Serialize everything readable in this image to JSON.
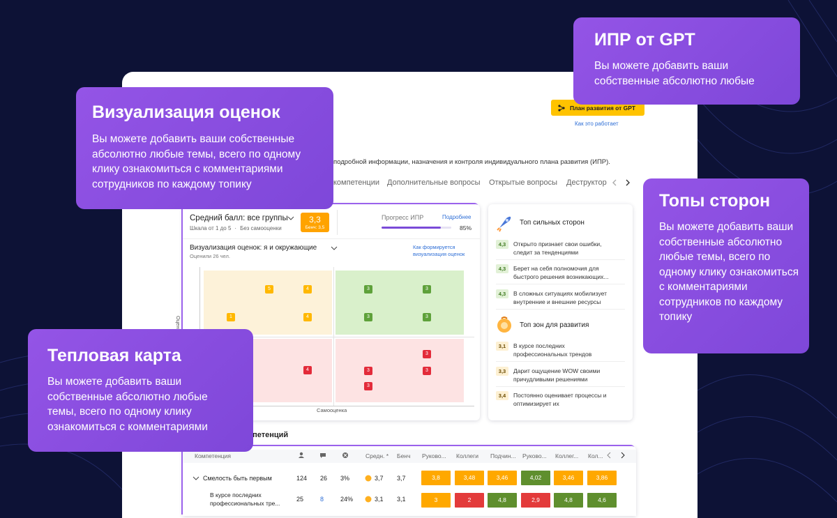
{
  "callouts": [
    {
      "title": "ИПР от GPT",
      "text": "Вы можете добавить ваши собственные абсолютно любые"
    },
    {
      "title": "Визуализация оценок",
      "text": "Вы можете добавить ваши собственные абсолютно любые темы, всего по одному клику ознакомиться с комментариями сотрудников по каждому топику"
    },
    {
      "title": "Топы сторон",
      "text": "Вы можете добавить ваши собственные абсолютно любые темы, всего по одному клику ознакомиться с комментариями сотрудников по каждому топику"
    },
    {
      "title": "Тепловая карта",
      "text": "Вы можете добавить ваши собственные абсолютно любые темы, всего по одному клику ознакомиться с комментариями"
    }
  ],
  "gpt_button": "План развития от GPT",
  "how_link": "Как это работает",
  "description": "подробной информации, назначения и контроля индивидуального плана развития (ИПР).",
  "tabs": [
    "компетенции",
    "Дополнительные вопросы",
    "Открытые вопросы",
    "Деструктор"
  ],
  "score_card": {
    "title": "Средний балл: все группы",
    "scale": "Шкала от 1 до 5",
    "self": "Без самооценки",
    "score": "3,3",
    "bench": "Бенч: 3,5",
    "progress_title": "Прогресс ИПР",
    "more": "Подробнее",
    "progress": {
      "value": 85,
      "label": "85%"
    }
  },
  "visualization": {
    "title": "Визуализация оценок: я и окружающие",
    "raters": "Оценили 26 чел.",
    "link": "Как формируется визуализация оценок",
    "y_axis": "Оценка",
    "x_axis": "Самооценка",
    "quadrants": [
      {
        "markers": [
          "5",
          "4",
          "1",
          "4"
        ]
      },
      {
        "markers": [
          "3",
          "3",
          "3",
          "3"
        ]
      },
      {
        "markers": [
          "4"
        ]
      },
      {
        "markers": [
          "3",
          "3",
          "3",
          "3"
        ]
      }
    ]
  },
  "strengths": {
    "title": "Топ сильных сторон",
    "items": [
      {
        "score": "4,3",
        "text": "Открыто признает свои ошибки, следит за тенденциями"
      },
      {
        "score": "4,3",
        "text": "Берет на себя полномочия для быстрого решения возникающих..."
      },
      {
        "score": "4,3",
        "text": "В сложных ситуациях мобилизует внутренние и внешние ресурсы"
      }
    ]
  },
  "growth": {
    "title": "Топ зон для развития",
    "items": [
      {
        "score": "3,1",
        "text": "В курсе последних профессиональных трендов"
      },
      {
        "score": "3,3",
        "text": "Дарит ощущение WOW своими причудливыми решениями"
      },
      {
        "score": "3,4",
        "text": "Постоянно оценивает процессы и оптимизирует их"
      }
    ]
  },
  "table": {
    "title": "компетенций",
    "columns": [
      "Компетенция",
      "Средн. *",
      "Бенч",
      "Руково...",
      "Коллеги",
      "Подчин...",
      "Руково...",
      "Коллег...",
      "Кол..."
    ],
    "rows": [
      {
        "name": "Смелость быть первым",
        "count": "124",
        "comments": "26",
        "share": "3%",
        "avg": "3,7",
        "bench": "3,7",
        "cells": [
          "3,8",
          "3,48",
          "3,46",
          "4,02",
          "3,46",
          "3,86"
        ],
        "cell_colors": [
          "#ffa800",
          "#ffa800",
          "#ffa800",
          "#5f8f2e",
          "#ffa800",
          "#ffa800"
        ]
      },
      {
        "name": "В курсе последних профессиональных тре...",
        "count": "25",
        "comments": "8",
        "share": "24%",
        "avg": "3,1",
        "bench": "3,1",
        "cells": [
          "3",
          "2",
          "4,8",
          "2,9",
          "4,8",
          "4,6"
        ],
        "cell_colors": [
          "#ffa800",
          "#e33b3b",
          "#5f8f2e",
          "#e33b3b",
          "#5f8f2e",
          "#5f8f2e"
        ]
      }
    ]
  }
}
